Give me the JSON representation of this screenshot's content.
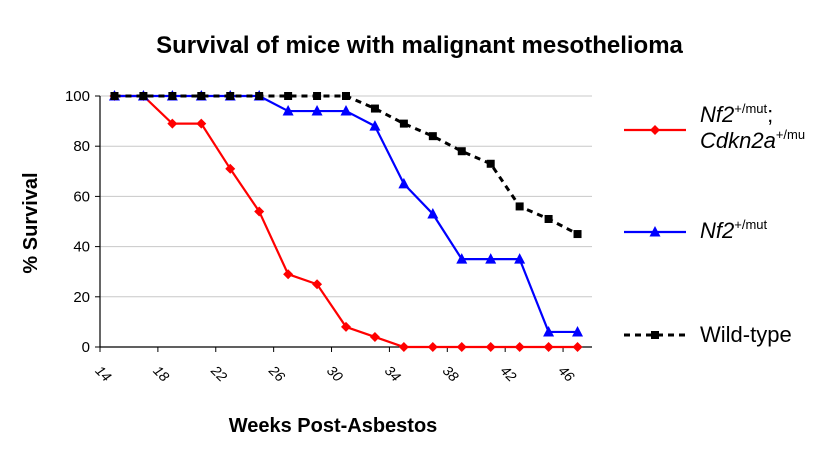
{
  "chart_data": {
    "type": "line",
    "title": "Survival of mice with malignant mesothelioma",
    "xlabel": "Weeks Post-Asbestos",
    "ylabel": "% Survival",
    "xlim": [
      14,
      48
    ],
    "ylim": [
      0,
      100
    ],
    "x_ticks": [
      14,
      18,
      22,
      26,
      30,
      34,
      38,
      42,
      46
    ],
    "y_ticks": [
      0,
      20,
      40,
      60,
      80,
      100
    ],
    "grid": "horizontal",
    "legend_position": "right",
    "series": [
      {
        "name": "Nf2+/mut;Cdkn2a+/mu",
        "legend_main": "Nf2",
        "legend_sup": "+/mut",
        "legend_main2": "Cdkn2a",
        "legend_sup2": "+/mu",
        "legend_sep": ";",
        "color": "#ff0000",
        "marker": "diamond",
        "line_style": "solid",
        "x": [
          15,
          17,
          19,
          21,
          23,
          25,
          27,
          29,
          31,
          33,
          35,
          37,
          39,
          41,
          43,
          45,
          47
        ],
        "y": [
          100,
          100,
          89,
          89,
          71,
          54,
          29,
          25,
          8,
          4,
          0,
          0,
          0,
          0,
          0,
          0,
          0
        ]
      },
      {
        "name": "Nf2+/mut",
        "legend_main": "Nf2",
        "legend_sup": "+/mut",
        "color": "#0000ff",
        "marker": "triangle",
        "line_style": "solid",
        "x": [
          15,
          17,
          19,
          21,
          23,
          25,
          27,
          29,
          31,
          33,
          35,
          37,
          39,
          41,
          43,
          45,
          47
        ],
        "y": [
          100,
          100,
          100,
          100,
          100,
          100,
          94,
          94,
          94,
          88,
          65,
          53,
          35,
          35,
          35,
          6,
          6
        ]
      },
      {
        "name": "Wild-type",
        "legend_main": "Wild-type",
        "color": "#000000",
        "marker": "square",
        "line_style": "dashed",
        "x": [
          15,
          17,
          19,
          21,
          23,
          25,
          27,
          29,
          31,
          33,
          35,
          37,
          39,
          41,
          43,
          45,
          47
        ],
        "y": [
          100,
          100,
          100,
          100,
          100,
          100,
          100,
          100,
          100,
          95,
          89,
          84,
          78,
          73,
          56,
          51,
          45
        ]
      }
    ]
  }
}
